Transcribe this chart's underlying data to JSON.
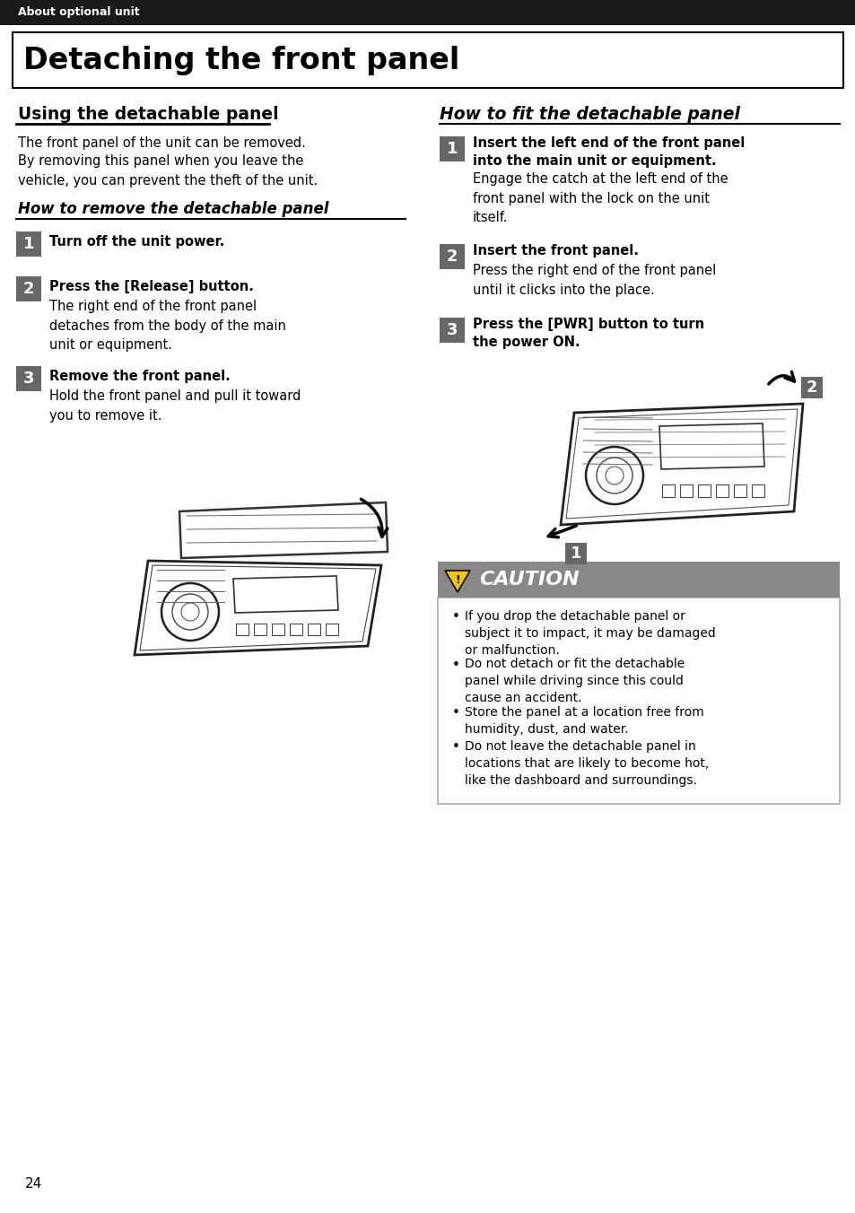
{
  "page_bg": "#ffffff",
  "header_bg": "#1a1a1a",
  "header_text": "About optional unit",
  "header_text_color": "#ffffff",
  "main_title": "Detaching the front panel",
  "step_box_color": "#666666",
  "step_text_color": "#ffffff",
  "caution_header_bg": "#888888",
  "caution_header_text": "CAUTION",
  "caution_border": "#aaaaaa",
  "page_number": "24",
  "left_section_title": "Using the detachable panel",
  "right_section_title": "How to fit the detachable panel",
  "left_intro_1": "The front panel of the unit can be removed.",
  "left_intro_2": "By removing this panel when you leave the\nvehicle, you can prevent the theft of the unit.",
  "remove_subtitle": "How to remove the detachable panel",
  "left_steps": [
    {
      "num": "1",
      "bold": "Turn off the unit power.",
      "desc": ""
    },
    {
      "num": "2",
      "bold": "Press the [Release] button.",
      "desc": "The right end of the front panel\ndetaches from the body of the main\nunit or equipment."
    },
    {
      "num": "3",
      "bold": "Remove the front panel.",
      "desc": "Hold the front panel and pull it toward\nyou to remove it."
    }
  ],
  "right_steps": [
    {
      "num": "1",
      "bold": "Insert the left end of the front panel\ninto the main unit or equipment.",
      "desc": "Engage the catch at the left end of the\nfront panel with the lock on the unit\nitself."
    },
    {
      "num": "2",
      "bold": "Insert the front panel.",
      "desc": "Press the right end of the front panel\nuntil it clicks into the place."
    },
    {
      "num": "3",
      "bold": "Press the [PWR] button to turn\nthe power ON.",
      "desc": ""
    }
  ],
  "caution_items": [
    "If you drop the detachable panel or\nsubject it to impact, it may be damaged\nor malfunction.",
    "Do not detach or fit the detachable\npanel while driving since this could\ncause an accident.",
    "Store the panel at a location free from\nhumidity, dust, and water.",
    "Do not leave the detachable panel in\nlocations that are likely to become hot,\nlike the dashboard and surroundings."
  ]
}
